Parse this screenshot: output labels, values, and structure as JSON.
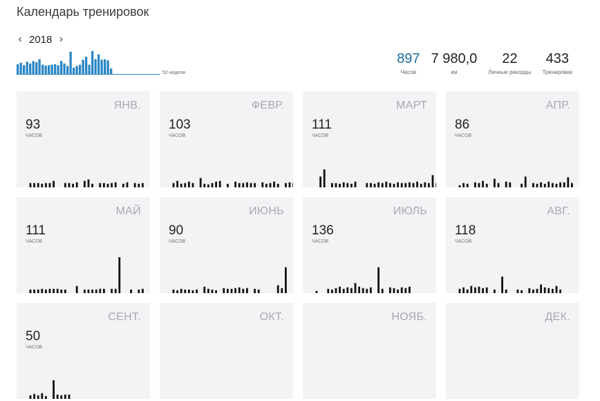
{
  "header": {
    "title": "Календарь тренировок"
  },
  "year_nav": {
    "prev_icon": "‹",
    "year": "2018",
    "next_icon": "›"
  },
  "weekly": {
    "caption": "52 недели",
    "color": "#2b86c5",
    "values": [
      0.42,
      0.48,
      0.38,
      0.52,
      0.45,
      0.55,
      0.5,
      0.62,
      0.4,
      0.36,
      0.38,
      0.4,
      0.42,
      0.38,
      0.55,
      0.45,
      0.35,
      0.92,
      0.28,
      0.35,
      0.4,
      0.6,
      0.72,
      0.4,
      0.95,
      0.62,
      0.82,
      0.6,
      0.62,
      0.58,
      0.25
    ]
  },
  "stats": [
    {
      "value": "897",
      "label": "Часов",
      "accent": true
    },
    {
      "value": "7 980,0",
      "label": "км",
      "accent": false
    },
    {
      "value": "22",
      "label": "Личные рекорды",
      "accent": false
    },
    {
      "value": "433",
      "label": "Тренировки",
      "accent": false
    }
  ],
  "months": [
    {
      "name": "ЯНВ.",
      "hours": "93",
      "unit": "ЧАСОВ",
      "bars": [
        0,
        0.12,
        0.12,
        0.12,
        0.1,
        0.12,
        0.12,
        0.18,
        0,
        0,
        0.12,
        0.12,
        0.1,
        0.14,
        0,
        0.18,
        0.22,
        0.1,
        0,
        0.12,
        0.12,
        0.1,
        0.12,
        0.14,
        0,
        0.1,
        0.14,
        0,
        0.12,
        0.1,
        0.12,
        0,
        0,
        0,
        0.14,
        0.1,
        0,
        0.12,
        0.14,
        0.1
      ]
    },
    {
      "name": "ФЕВР.",
      "hours": "103",
      "unit": "ЧАСОВ",
      "bars": [
        0,
        0.12,
        0.18,
        0.1,
        0.12,
        0.16,
        0.12,
        0,
        0.26,
        0.1,
        0.08,
        0.12,
        0.16,
        0.18,
        0,
        0.1,
        0,
        0.16,
        0.12,
        0.12,
        0.14,
        0.12,
        0.12,
        0,
        0.14,
        0.1,
        0.12,
        0.16,
        0.1,
        0,
        0.12,
        0.14,
        0.12,
        0.1,
        0.16,
        0.12,
        0
      ]
    },
    {
      "name": "МАРТ",
      "hours": "111",
      "unit": "ЧАСОВ",
      "bars": [
        0,
        0,
        0.3,
        0.5,
        0,
        0.12,
        0.12,
        0.1,
        0.14,
        0.12,
        0.1,
        0.16,
        0,
        0,
        0.12,
        0.12,
        0.1,
        0.14,
        0.12,
        0.16,
        0.12,
        0.1,
        0.14,
        0.12,
        0.12,
        0.14,
        0.12,
        0.16,
        0.1,
        0.14,
        0.12,
        0.34,
        0.12
      ]
    },
    {
      "name": "АПР.",
      "hours": "86",
      "unit": "ЧАСОВ",
      "bars": [
        0,
        0.06,
        0.12,
        0.1,
        0,
        0.14,
        0.12,
        0.18,
        0.1,
        0,
        0.24,
        0.12,
        0,
        0.16,
        0.14,
        0,
        0,
        0.1,
        0.3,
        0,
        0.12,
        0.1,
        0.14,
        0.1,
        0.16,
        0.12,
        0.1,
        0.14,
        0.14,
        0.28,
        0.12,
        0
      ]
    },
    {
      "name": "МАЙ",
      "hours": "111",
      "unit": "ЧАСОВ",
      "bars": [
        0,
        0.1,
        0.1,
        0.1,
        0.12,
        0.1,
        0.12,
        0.12,
        0.12,
        0.1,
        0.1,
        0,
        0,
        0.2,
        0,
        0.1,
        0.1,
        0.1,
        0.1,
        0.12,
        0.12,
        0,
        0.12,
        0.12,
        1.0,
        0,
        0,
        0.1,
        0,
        0.1,
        0.12,
        0
      ]
    },
    {
      "name": "ИЮНЬ",
      "hours": "90",
      "unit": "ЧАСОВ",
      "bars": [
        0,
        0.1,
        0.08,
        0.12,
        0.1,
        0.1,
        0.08,
        0.1,
        0,
        0.18,
        0.12,
        0.1,
        0.08,
        0,
        0.14,
        0.12,
        0.12,
        0.14,
        0.16,
        0.12,
        0.14,
        0,
        0.12,
        0.1,
        0,
        0,
        0,
        0,
        0.22,
        0.14,
        0.72,
        0
      ]
    },
    {
      "name": "ИЮЛЬ",
      "hours": "136",
      "unit": "ЧАСОВ",
      "bars": [
        0,
        0.06,
        0,
        0,
        0.12,
        0.1,
        0.14,
        0.18,
        0.12,
        0.16,
        0.14,
        0.28,
        0.18,
        0.14,
        0.12,
        0.16,
        0,
        0.72,
        0.12,
        0,
        0.16,
        0.14,
        0.1,
        0.16,
        0.14,
        0.18,
        0
      ]
    },
    {
      "name": "АВГ.",
      "hours": "118",
      "unit": "ЧАСОВ",
      "bars": [
        0,
        0.12,
        0.16,
        0.1,
        0.2,
        0.16,
        0.18,
        0.14,
        0.16,
        0,
        0.1,
        0,
        0.46,
        0.1,
        0,
        0,
        0.1,
        0.08,
        0,
        0.14,
        0.1,
        0.12,
        0.24,
        0.16,
        0.14,
        0.12,
        0.2,
        0.1,
        0
      ]
    },
    {
      "name": "СЕНТ.",
      "hours": "50",
      "unit": "ЧАСОВ",
      "bars": [
        0,
        0.1,
        0.14,
        0.1,
        0.16,
        0.08,
        0,
        0.52,
        0.12,
        0.1,
        0.12,
        0.12,
        0
      ]
    },
    {
      "name": "ОКТ.",
      "hours": "",
      "unit": "",
      "bars": []
    },
    {
      "name": "НОЯБ.",
      "hours": "",
      "unit": "",
      "bars": []
    },
    {
      "name": "ДЕК.",
      "hours": "",
      "unit": "",
      "bars": []
    }
  ]
}
